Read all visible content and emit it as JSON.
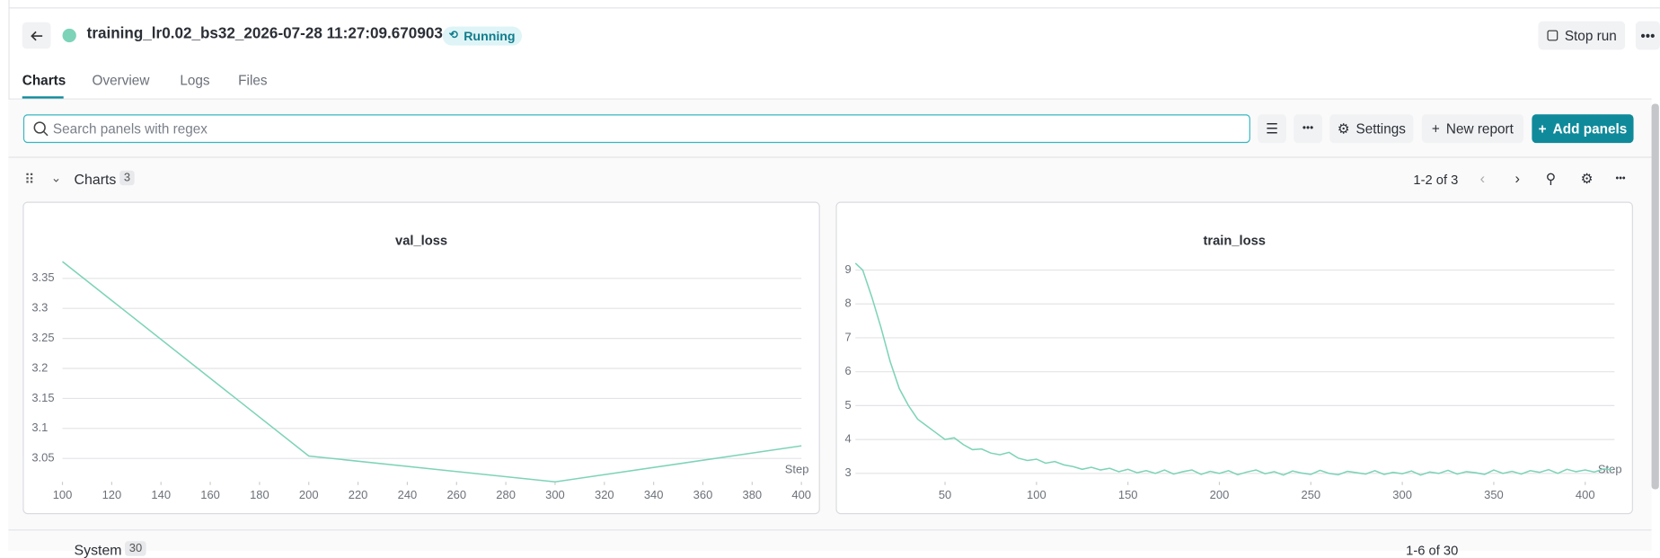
{
  "header": {
    "run_name": "training_lr0.02_bs32_2026-07-28 11:27:09.670903",
    "status": "Running",
    "stop_button": "Stop run"
  },
  "tabs": [
    "Charts",
    "Overview",
    "Logs",
    "Files"
  ],
  "toolbar": {
    "search_placeholder": "Search panels with regex",
    "settings": "Settings",
    "new_report": "New report",
    "add_panels": "Add panels"
  },
  "section": {
    "title": "Charts",
    "count": "3",
    "pagination": "1-2 of 3"
  },
  "system_section": {
    "title": "System",
    "count": "30",
    "pagination": "1-6 of 30"
  },
  "chart_data": [
    {
      "type": "line",
      "title": "val_loss",
      "x_label": "Step",
      "color": "#7dd3b8",
      "grid": true,
      "x": [
        100,
        200,
        300,
        400
      ],
      "series": [
        {
          "name": "val_loss",
          "color": "#7dd3b8",
          "values": [
            3.378,
            3.054,
            3.011,
            3.071
          ]
        }
      ],
      "xlim": [
        100,
        400
      ],
      "xticks": [
        100,
        120,
        140,
        160,
        180,
        200,
        220,
        240,
        260,
        280,
        300,
        320,
        340,
        360,
        380,
        400
      ],
      "ylim": [
        3.011,
        3.378
      ],
      "yticks": [
        3.05,
        3.1,
        3.15,
        3.2,
        3.25,
        3.3,
        3.35
      ]
    },
    {
      "type": "line",
      "title": "train_loss",
      "x_label": "Step",
      "color": "#7dd3b8",
      "grid": true,
      "x": [
        1,
        5,
        10,
        15,
        20,
        25,
        30,
        35,
        40,
        45,
        50,
        55,
        60,
        65,
        70,
        75,
        80,
        85,
        90,
        95,
        100,
        105,
        110,
        115,
        120,
        125,
        130,
        135,
        140,
        145,
        150,
        155,
        160,
        165,
        170,
        175,
        180,
        185,
        190,
        195,
        200,
        205,
        210,
        215,
        220,
        225,
        230,
        235,
        240,
        245,
        250,
        255,
        260,
        265,
        270,
        275,
        280,
        285,
        290,
        295,
        300,
        305,
        310,
        315,
        320,
        325,
        330,
        335,
        340,
        345,
        350,
        355,
        360,
        365,
        370,
        375,
        380,
        385,
        390,
        395,
        400,
        405,
        410,
        415
      ],
      "series": [
        {
          "name": "train_loss",
          "color": "#7dd3b8",
          "values": [
            9.2,
            9.0,
            8.2,
            7.3,
            6.3,
            5.5,
            5.0,
            4.6,
            4.4,
            4.2,
            4.0,
            4.05,
            3.85,
            3.7,
            3.72,
            3.6,
            3.55,
            3.62,
            3.45,
            3.38,
            3.42,
            3.3,
            3.35,
            3.25,
            3.2,
            3.12,
            3.18,
            3.1,
            3.15,
            3.05,
            3.12,
            3.02,
            3.08,
            3.0,
            3.1,
            2.98,
            3.05,
            3.1,
            2.97,
            3.06,
            3.0,
            3.08,
            2.96,
            3.04,
            3.1,
            2.99,
            3.05,
            2.95,
            3.07,
            3.01,
            2.97,
            3.09,
            3.0,
            2.96,
            3.06,
            3.02,
            2.98,
            3.08,
            2.97,
            3.03,
            2.99,
            3.07,
            2.95,
            3.04,
            3.0,
            3.09,
            2.98,
            3.05,
            3.02,
            2.97,
            3.1,
            3.0,
            3.06,
            2.98,
            3.08,
            3.03,
            3.11,
            3.0,
            3.12,
            3.05,
            3.1,
            3.04,
            3.13,
            3.1
          ]
        }
      ],
      "xlim": [
        1,
        416
      ],
      "xticks": [
        50,
        100,
        150,
        200,
        250,
        300,
        350,
        400
      ],
      "ylim": [
        2.75,
        9.25
      ],
      "yticks": [
        3,
        4,
        5,
        6,
        7,
        8,
        9
      ]
    }
  ]
}
